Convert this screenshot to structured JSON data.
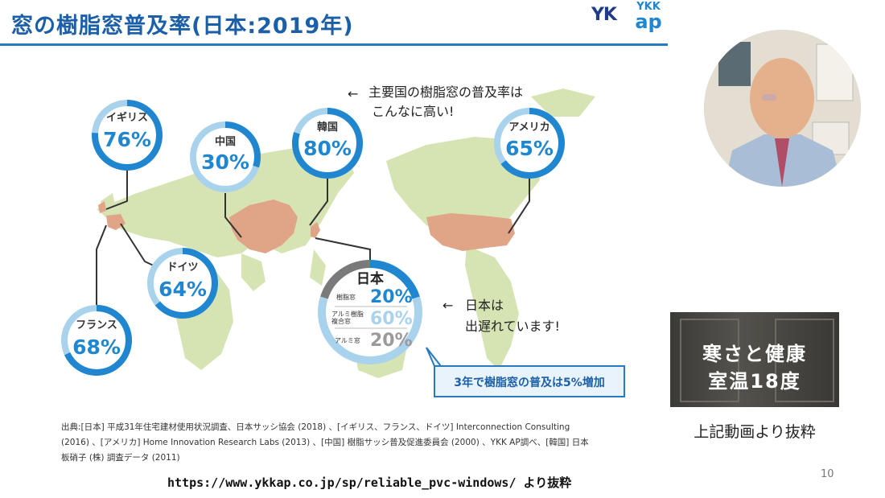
{
  "slide": {
    "title": "窓の樹脂窓普及率(日本:2019年)",
    "page_number": "10"
  },
  "logo": {
    "yk": "YK",
    "ykk": "YKK",
    "ap": "ap"
  },
  "map": {
    "countries": [
      {
        "name": "イギリス",
        "rate": "76%"
      },
      {
        "name": "中国",
        "rate": "30%"
      },
      {
        "name": "韓国",
        "rate": "80%"
      },
      {
        "name": "アメリカ",
        "rate": "65%"
      },
      {
        "name": "ドイツ",
        "rate": "64%"
      },
      {
        "name": "フランス",
        "rate": "68%"
      }
    ],
    "japan": {
      "name": "日本",
      "rows": [
        {
          "label": "樹脂窓",
          "rate": "20%"
        },
        {
          "label1": "アルミ樹脂",
          "label2": "複合窓",
          "rate": "60%"
        },
        {
          "label": "アルミ窓",
          "rate": "20%"
        }
      ]
    },
    "note_top_line1": "主要国の樹脂窓の普及率は",
    "note_top_line2": "こんなに高い!",
    "note_right_line1": "日本は",
    "note_right_line2": "出遅れています!",
    "callout": "3年で樹脂窓の普及は5%増加"
  },
  "source": {
    "line1": "出典:[日本] 平成31年住宅建材使用状況調査、日本サッシ協会 (2018) 、[イギリス、フランス、ドイツ] Interconnection Consulting",
    "line2": "(2016) 、[アメリカ] Home Innovation Research Labs (2013) 、[中国] 樹脂サッシ普及促進委員会 (2000) 、YKK AP調べ、[韓国] 日本",
    "line3": "板硝子 (株) 調査データ (2011)"
  },
  "url_text": "https://www.ykkap.co.jp/sp/reliable_pvc-windows/ より抜粋",
  "video": {
    "line1": "寒さと健康",
    "line2": "室温18度",
    "caption": "上記動画より抜粋"
  },
  "colors": {
    "title_blue": "#1b5fa8",
    "ring_blue": "#1f86cf",
    "ring_light": "#a9d2ec",
    "land": "#d6e4b4",
    "highlight_land": "#e0a487",
    "japan_grey": "#7a7a7a"
  }
}
